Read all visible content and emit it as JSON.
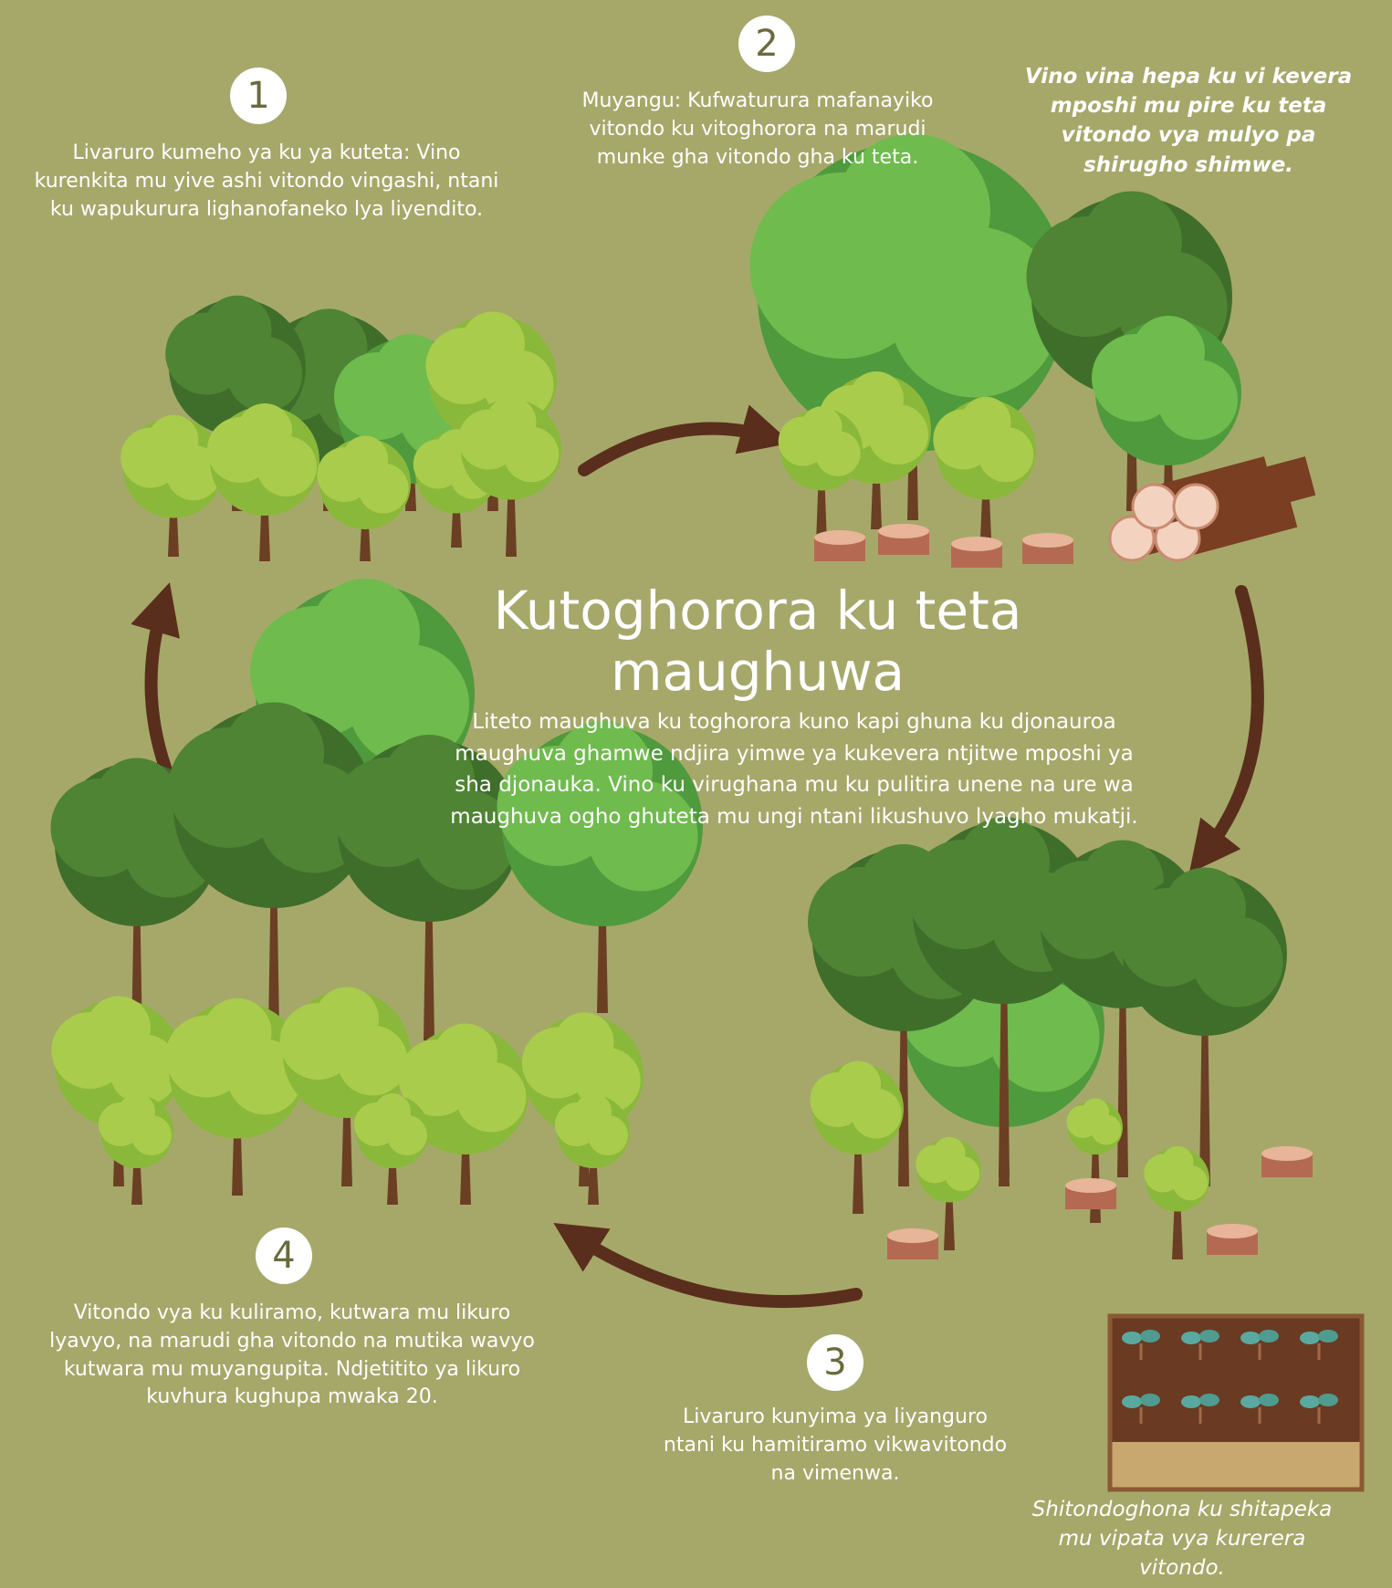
{
  "title": "Kutoghorora ku teta maughuwa",
  "intro": "Liteto maughuva ku toghorora kuno kapi ghuna ku djonauroa maughuva ghamwe ndjira yimwe ya kukevera ntjitwe mposhi ya sha djonauka. Vino ku virughana mu ku pulitira unene na ure wa maughuva ogho ghuteta mu ungi ntani likushuvo lyagho mukatji.",
  "steps": [
    {
      "number": "1",
      "text": "Livaruro kumeho ya ku ya kuteta: Vino kurenkita mu yive ashi vitondo vingashi, ntani ku wapukurura lighanofaneko lya liyendito."
    },
    {
      "number": "2",
      "text": "Muyangu: Kufwaturura mafanayiko vitondo ku vitoghorora na marudi munke gha vitondo gha ku teta."
    },
    {
      "number": "3",
      "text": "Livaruro kunyima ya liyanguro ntani ku hamitiramo vikwavitondo na vimenwa."
    },
    {
      "number": "4",
      "text": "Vitondo vya ku kuliramo, kutwara mu likuro lyavyo, na marudi gha vitondo na mutika wavyo kutwara mu muyangupita. Ndjetitito ya likuro kuvhura kughupa mwaka 20."
    }
  ],
  "note": "Vino vina hepa ku vi kevera mposhi mu pire ku teta vitondo vya mulyo pa shirugho shimwe.",
  "nursery_caption": "Shitondoghona ku shitapeka mu vipata vya kurerera vitondo."
}
